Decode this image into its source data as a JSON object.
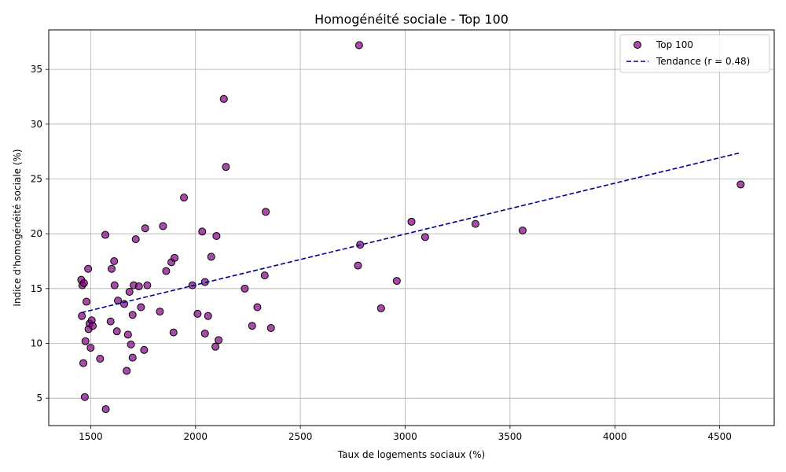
{
  "chart_data": {
    "type": "scatter",
    "title": "Homogénéité sociale - Top 100",
    "xlabel": "Taux de logements sociaux (%)",
    "ylabel": "Indice d'homogénéité sociale (%)",
    "xlim": [
      1300,
      4760
    ],
    "ylim": [
      2.5,
      38.6
    ],
    "xticks": [
      1500,
      2000,
      2500,
      3000,
      3500,
      4000,
      4500
    ],
    "yticks": [
      5,
      10,
      15,
      20,
      25,
      30,
      35
    ],
    "xtick_labels": [
      "1500",
      "2000",
      "2500",
      "3000",
      "3500",
      "4000",
      "4500"
    ],
    "ytick_labels": [
      "5",
      "10",
      "15",
      "20",
      "25",
      "30",
      "35"
    ],
    "grid": true,
    "legend_position": "top-right",
    "series": [
      {
        "name": "Top 100",
        "kind": "scatter",
        "color": "#800080",
        "edgecolor": "#000000",
        "points": [
          [
            1455,
            15.8
          ],
          [
            1460,
            15.3
          ],
          [
            1468,
            15.5
          ],
          [
            1458,
            12.5
          ],
          [
            1465,
            8.2
          ],
          [
            1472,
            5.1
          ],
          [
            1475,
            10.2
          ],
          [
            1480,
            13.8
          ],
          [
            1488,
            16.8
          ],
          [
            1490,
            11.3
          ],
          [
            1495,
            11.8
          ],
          [
            1500,
            9.6
          ],
          [
            1505,
            12.1
          ],
          [
            1510,
            11.6
          ],
          [
            1545,
            8.6
          ],
          [
            1570,
            19.9
          ],
          [
            1572,
            4.0
          ],
          [
            1595,
            12.0
          ],
          [
            1600,
            16.8
          ],
          [
            1612,
            17.5
          ],
          [
            1614,
            15.3
          ],
          [
            1625,
            11.1
          ],
          [
            1630,
            13.9
          ],
          [
            1660,
            13.6
          ],
          [
            1672,
            7.5
          ],
          [
            1678,
            10.8
          ],
          [
            1685,
            14.7
          ],
          [
            1692,
            9.9
          ],
          [
            1700,
            12.6
          ],
          [
            1700,
            8.7
          ],
          [
            1705,
            15.3
          ],
          [
            1715,
            19.5
          ],
          [
            1730,
            15.2
          ],
          [
            1740,
            13.3
          ],
          [
            1755,
            9.4
          ],
          [
            1760,
            20.5
          ],
          [
            1770,
            15.3
          ],
          [
            1830,
            12.9
          ],
          [
            1845,
            20.7
          ],
          [
            1860,
            16.6
          ],
          [
            1885,
            17.4
          ],
          [
            1895,
            11.0
          ],
          [
            1900,
            17.8
          ],
          [
            1945,
            23.3
          ],
          [
            1985,
            15.3
          ],
          [
            2010,
            12.7
          ],
          [
            2032,
            20.2
          ],
          [
            2045,
            15.6
          ],
          [
            2045,
            10.9
          ],
          [
            2060,
            12.5
          ],
          [
            2075,
            17.9
          ],
          [
            2095,
            9.7
          ],
          [
            2100,
            19.8
          ],
          [
            2110,
            10.3
          ],
          [
            2135,
            32.3
          ],
          [
            2145,
            26.1
          ],
          [
            2235,
            15.0
          ],
          [
            2270,
            11.6
          ],
          [
            2295,
            13.3
          ],
          [
            2330,
            16.2
          ],
          [
            2335,
            22.0
          ],
          [
            2360,
            11.4
          ],
          [
            2775,
            17.1
          ],
          [
            2780,
            37.2
          ],
          [
            2785,
            19.0
          ],
          [
            2885,
            13.2
          ],
          [
            2960,
            15.7
          ],
          [
            3030,
            21.1
          ],
          [
            3095,
            19.7
          ],
          [
            3335,
            20.9
          ],
          [
            3560,
            20.3
          ],
          [
            4600,
            24.5
          ]
        ]
      },
      {
        "name": "Tendance (r = 0.48)",
        "kind": "line",
        "style": "dashed",
        "color": "#00008b",
        "x": [
          1455,
          4600
        ],
        "y": [
          12.8,
          27.4
        ]
      }
    ]
  }
}
